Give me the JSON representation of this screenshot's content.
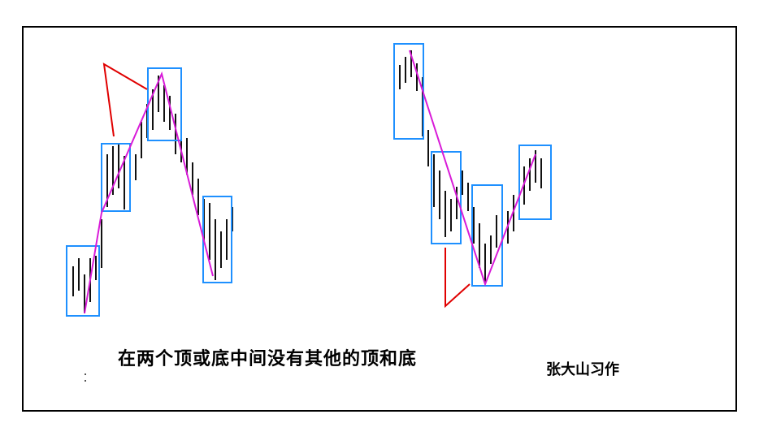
{
  "caption": "在两个顶或底中间没有其他的顶和底",
  "author": "张大山习作",
  "colors": {
    "frame": "#000000",
    "bar": "#111111",
    "pivot_box": "#1e90ff",
    "swing_line": "#d81bd8",
    "pointer": "#e00000"
  }
}
